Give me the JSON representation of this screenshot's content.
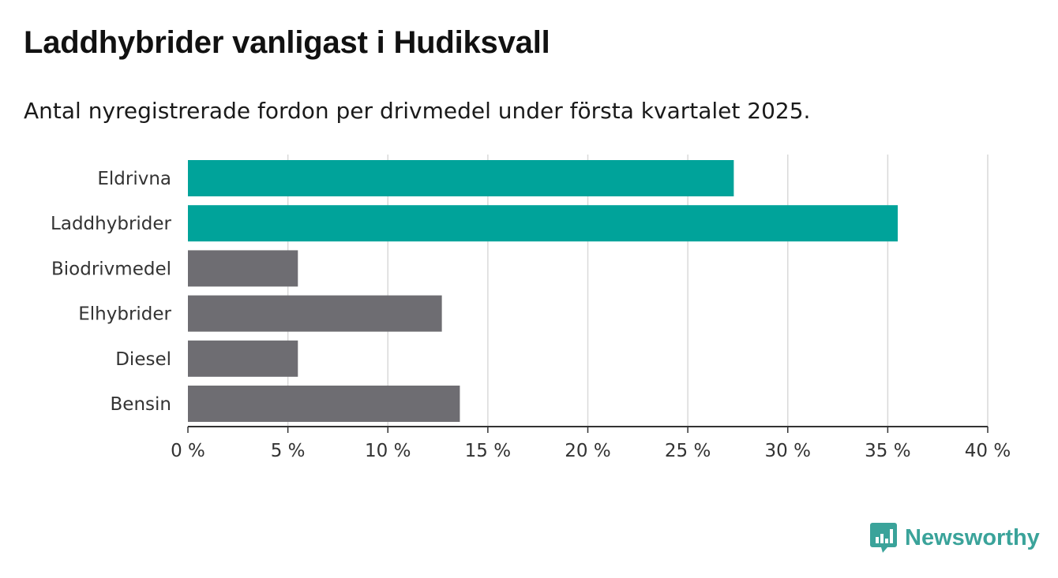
{
  "header": {
    "title": "Laddhybrider vanligast i Hudiksvall",
    "subtitle": "Antal nyregistrerade fordon per drivmedel under första kvartalet 2025."
  },
  "brand": {
    "name": "Newsworthy",
    "icon": "newsworthy-logo-icon",
    "color": "#3aa39a"
  },
  "chart_data": {
    "type": "bar",
    "orientation": "horizontal",
    "categories": [
      "Eldrivna",
      "Laddhybrider",
      "Biodrivmedel",
      "Elhybrider",
      "Diesel",
      "Bensin"
    ],
    "values": [
      27.3,
      35.5,
      5.5,
      12.7,
      5.5,
      13.6
    ],
    "colors": [
      "#00a39a",
      "#00a39a",
      "#6e6d72",
      "#6e6d72",
      "#6e6d72",
      "#6e6d72"
    ],
    "xlim": [
      0,
      40
    ],
    "xticks": [
      0,
      5,
      10,
      15,
      20,
      25,
      30,
      35,
      40
    ],
    "xtick_labels": [
      "0 %",
      "5 %",
      "10 %",
      "15 %",
      "20 %",
      "25 %",
      "30 %",
      "35 %",
      "40 %"
    ],
    "grid": "vertical"
  }
}
